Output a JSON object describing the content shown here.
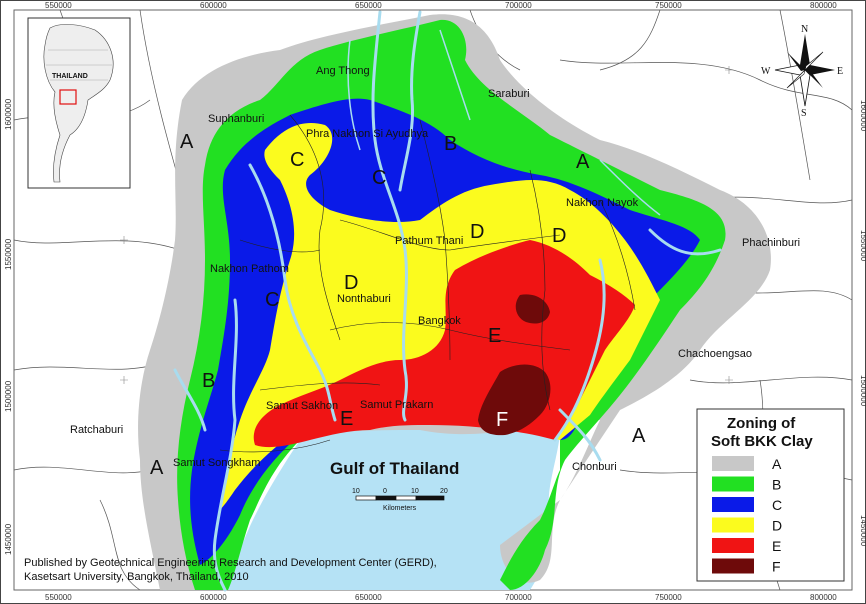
{
  "map": {
    "x_ticks": [
      "550000",
      "600000",
      "650000",
      "700000",
      "750000",
      "800000"
    ],
    "y_ticks_left": [
      "1600000",
      "1550000",
      "1500000",
      "1450000"
    ],
    "y_ticks_right": [
      "1600000",
      "1550000",
      "1500000",
      "1450000"
    ],
    "inset_label": "THAILAND",
    "compass": {
      "n": "N",
      "s": "S",
      "e": "E",
      "w": "W"
    },
    "places": {
      "ang_thong": "Ang Thong",
      "saraburi": "Saraburi",
      "suphanburi": "Suphanburi",
      "ayutthaya": "Phra Nakhon Si Ayudhya",
      "nakhon_nayok": "Nakhon Nayok",
      "pathum_thani": "Pathum Thani",
      "phachinburi": "Phachinburi",
      "nakhon_pathom": "Nakhon Pathom",
      "nonthaburi": "Nonthaburi",
      "bangkok": "Bangkok",
      "chachoengsao": "Chachoengsao",
      "ratchaburi": "Ratchaburi",
      "samut_sakhon": "Samut Sakhon",
      "samut_prakarn": "Samut Prakarn",
      "samut_songkham": "Samut Songkham",
      "chonburi": "Chonburi"
    },
    "zone_labels": {
      "a": "A",
      "b": "B",
      "c": "C",
      "d": "D",
      "e": "E",
      "f": "F"
    },
    "sea_label": "Gulf of Thailand",
    "scale": {
      "t0": "10",
      "t1": "0",
      "t2": "10",
      "t3": "20",
      "unit": "Kilometers"
    },
    "credit_line1": "Published by Geotechnical Engineering Research and Development Center (GERD),",
    "credit_line2": "Kasetsart University, Bangkok, Thailand, 2010"
  },
  "legend": {
    "title_line1": "Zoning of",
    "title_line2": "Soft BKK Clay",
    "items": [
      {
        "label": "A",
        "color": "#c8c8c8"
      },
      {
        "label": "B",
        "color": "#22e022"
      },
      {
        "label": "C",
        "color": "#0a1ae8"
      },
      {
        "label": "D",
        "color": "#fbfb1e"
      },
      {
        "label": "E",
        "color": "#f01414"
      },
      {
        "label": "F",
        "color": "#6e0a0a"
      }
    ]
  },
  "colors": {
    "sea": "#b5e2f5",
    "zone_a": "#c8c8c8",
    "zone_b": "#22e022",
    "zone_c": "#0a1ae8",
    "zone_d": "#fbfb1e",
    "zone_e": "#f01414",
    "zone_f": "#6e0a0a",
    "river": "#a8dcef"
  }
}
